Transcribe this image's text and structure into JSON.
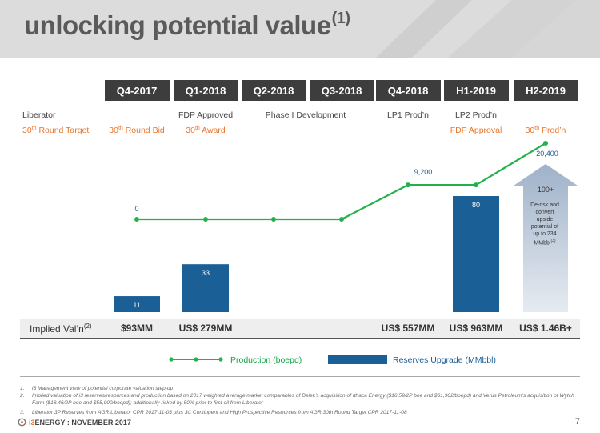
{
  "header": {
    "title": "unlocking potential value",
    "title_sup": "(1)"
  },
  "quarters": [
    "Q4-2017",
    "Q1-2018",
    "Q2-2018",
    "Q3-2018",
    "Q4-2018",
    "H1-2019",
    "H2-2019"
  ],
  "milestones": {
    "row1": [
      {
        "text": "Liberator"
      },
      {
        "text": "FDP Approved"
      },
      {
        "text": "Phase I Development"
      },
      {
        "text": "LP1 Prod’n"
      },
      {
        "text": "LP2 Prod’n"
      }
    ],
    "row2": [
      {
        "num": "30",
        "sup": "th",
        "rest": " Round Target"
      },
      {
        "num": "30",
        "sup": "th",
        "rest": " Round Bid"
      },
      {
        "num": "30",
        "sup": "th",
        "rest": " Award"
      },
      {
        "text": "FDP Approval"
      },
      {
        "num": "30",
        "sup": "th",
        "rest": " Prod’n"
      }
    ]
  },
  "chart_data": {
    "type": "bar",
    "categories": [
      "Q4-2017",
      "Q1-2018",
      "Q2-2018",
      "Q3-2018",
      "Q4-2018",
      "H1-2019",
      "H2-2019"
    ],
    "series": [
      {
        "name": "Production (boepd)",
        "type": "line",
        "color": "#22b14c",
        "values": [
          0,
          0,
          0,
          0,
          9200,
          9200,
          20400
        ],
        "labels": [
          "0",
          "",
          "",
          "",
          "",
          "9,200",
          "20,400"
        ]
      },
      {
        "name": "Reserves Upgrade (MMbbl)",
        "type": "bar",
        "color": "#1a5f96",
        "values": [
          11,
          33,
          null,
          null,
          null,
          80,
          100
        ],
        "labels": [
          "11",
          "33",
          "",
          "",
          "",
          "80",
          "100+"
        ]
      }
    ]
  },
  "arrow_text": [
    "De-risk and",
    "convert",
    "upside",
    "potential of",
    "up to 234",
    "MMbbl"
  ],
  "arrow_text_sup": "(3)",
  "valuation": {
    "label": "Implied Val’n",
    "label_sup": "(2)",
    "values": [
      "$93MM",
      "US$ 279MM",
      "",
      "",
      "US$ 557MM",
      "US$ 963MM",
      "US$ 1.46B+"
    ]
  },
  "legend": {
    "line": "Production (boepd)",
    "bar": "Reserves Upgrade (MMbbl)"
  },
  "footnotes": [
    {
      "n": "1.",
      "text": "i3 Management view of potential corporate valuation step-up"
    },
    {
      "n": "2.",
      "text": "Implied valuation of i3 reserves/resources and production based on 2017 weighted average market comparables of Delek’s acquisition of Ithaca Energy ($16.59/2P boe and $61,902/boepd) and Verus Petroleum’s acquisition of Wytch Farm ($18.46/2P boe and $55,000/boepd); additionally risked by 50% prior to first oil from Liberator"
    },
    {
      "n": "3.",
      "text": "Liberator 3P Reserves from AGR Liberator CPR 2017-11-03 plus 3C Contingent and High Prospective Resources from AGR 30th Round Target CPR 2017-11-08"
    }
  ],
  "footer": {
    "brand": "i3",
    "rest": "ENERGY : NOVEMBER 2017",
    "page": "7"
  }
}
